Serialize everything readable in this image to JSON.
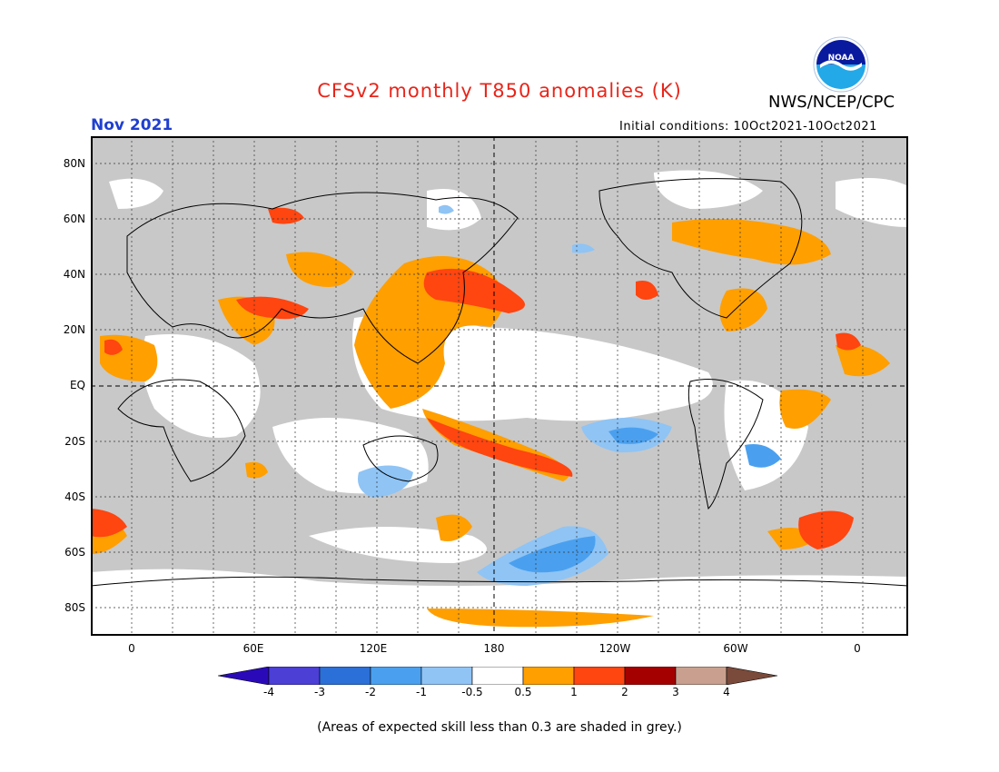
{
  "title": "CFSv2 monthly T850 anomalies (K)",
  "agency": "NWS/NCEP/CPC",
  "month": "Nov 2021",
  "initial_conditions": "Initial conditions: 10Oct2021-10Oct2021",
  "logo_text": "NOAA",
  "lat_labels": [
    "80N",
    "60N",
    "40N",
    "20N",
    "EQ",
    "20S",
    "40S",
    "60S",
    "80S"
  ],
  "lon_labels": [
    "0",
    "60E",
    "120E",
    "180",
    "120W",
    "60W",
    "0"
  ],
  "colorbar": {
    "labels": [
      "-4",
      "-3",
      "-2",
      "-1",
      "-0.5",
      "0.5",
      "1",
      "2",
      "3",
      "4"
    ],
    "colors": [
      "#2a0ab8",
      "#4b3fd6",
      "#2b6fd8",
      "#4aa0ef",
      "#8fc4f5",
      "#ffffff",
      "#ff9f00",
      "#ff4510",
      "#a50000",
      "#c9a08f",
      "#7a4a3a"
    ]
  },
  "note": "(Areas of expected skill less than 0.3 are shaded in grey.)",
  "colors": {
    "grey_mask": "#c8c8c8",
    "warm1": "#ff9f00",
    "warm2": "#ff4510",
    "cool1": "#8fc4f5",
    "cool2": "#4aa0ef"
  }
}
